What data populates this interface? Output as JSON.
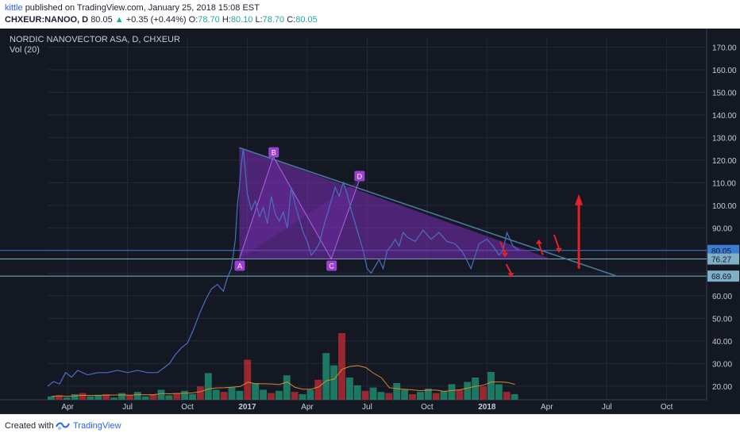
{
  "header": {
    "author": "kittle",
    "published_text": "published on TradingView.com, January 25, 2018 15:08 EST",
    "symbol": "CHXEUR:NANOO, D",
    "last": "80.05",
    "change_arrow": "▲",
    "change": "+0.35 (+0.44%)",
    "o_label": "O:",
    "o_value": "78.70",
    "h_label": "H:",
    "h_value": "80.10",
    "l_label": "L:",
    "l_value": "78.70",
    "c_label": "C:",
    "c_value": "80.05"
  },
  "chart": {
    "title": "NORDIC NANOVECTOR ASA, D, CHXEUR",
    "volume_label": "Vol (20)"
  },
  "chart_data": {
    "type": "line",
    "y_axis": {
      "range": [
        14,
        174
      ],
      "ticks": [
        "170.00",
        "160.00",
        "150.00",
        "140.00",
        "130.00",
        "120.00",
        "110.00",
        "100.00",
        "90.00",
        "80.00",
        "70.00",
        "60.00",
        "50.00",
        "40.00",
        "30.00",
        "20.00"
      ],
      "tick_values": [
        170,
        160,
        150,
        140,
        130,
        120,
        110,
        100,
        90,
        80,
        70,
        60,
        50,
        40,
        30,
        20
      ]
    },
    "x_axis": {
      "ticks": [
        "Apr",
        "Jul",
        "Oct",
        "2017",
        "Apr",
        "Jul",
        "Oct",
        "2018",
        "Apr",
        "Jul",
        "Oct"
      ],
      "tick_months": [
        3,
        6,
        9,
        12,
        15,
        18,
        21,
        24,
        27,
        30,
        33
      ],
      "bold": [
        false,
        false,
        false,
        true,
        false,
        false,
        false,
        true,
        false,
        false,
        false
      ],
      "range_months": [
        2.0,
        35.0
      ]
    },
    "series": [
      {
        "points": [
          [
            2.0,
            20
          ],
          [
            2.3,
            22
          ],
          [
            2.6,
            21
          ],
          [
            2.9,
            26
          ],
          [
            3.2,
            24
          ],
          [
            3.5,
            27
          ],
          [
            4.0,
            25
          ],
          [
            4.5,
            26
          ],
          [
            5.0,
            26
          ],
          [
            5.5,
            27
          ],
          [
            6.0,
            26
          ],
          [
            6.5,
            27
          ],
          [
            7.0,
            26
          ],
          [
            7.5,
            26
          ],
          [
            7.8,
            28
          ],
          [
            8.1,
            30
          ],
          [
            8.4,
            34
          ],
          [
            8.7,
            37
          ],
          [
            9.0,
            39
          ],
          [
            9.3,
            45
          ],
          [
            9.6,
            52
          ],
          [
            9.9,
            58
          ],
          [
            10.2,
            63
          ],
          [
            10.5,
            65
          ],
          [
            10.8,
            62
          ],
          [
            11.0,
            68
          ],
          [
            11.2,
            72
          ],
          [
            11.4,
            85
          ],
          [
            11.5,
            100
          ],
          [
            11.6,
            108
          ],
          [
            11.7,
            118
          ],
          [
            11.8,
            125
          ],
          [
            11.9,
            115
          ],
          [
            12.0,
            105
          ],
          [
            12.2,
            98
          ],
          [
            12.4,
            102
          ],
          [
            12.6,
            95
          ],
          [
            12.8,
            99
          ],
          [
            13.0,
            92
          ],
          [
            13.2,
            104
          ],
          [
            13.4,
            96
          ],
          [
            13.6,
            93
          ],
          [
            13.8,
            97
          ],
          [
            14.0,
            90
          ],
          [
            14.2,
            108
          ],
          [
            14.4,
            100
          ],
          [
            14.6,
            94
          ],
          [
            14.8,
            88
          ],
          [
            15.0,
            84
          ],
          [
            15.2,
            78
          ],
          [
            15.4,
            80
          ],
          [
            15.6,
            83
          ],
          [
            15.8,
            90
          ],
          [
            16.0,
            96
          ],
          [
            16.2,
            102
          ],
          [
            16.4,
            108
          ],
          [
            16.6,
            104
          ],
          [
            16.8,
            110
          ],
          [
            17.0,
            105
          ],
          [
            17.2,
            98
          ],
          [
            17.4,
            92
          ],
          [
            17.6,
            86
          ],
          [
            17.8,
            80
          ],
          [
            18.0,
            72
          ],
          [
            18.2,
            70
          ],
          [
            18.4,
            73
          ],
          [
            18.6,
            76
          ],
          [
            18.8,
            72
          ],
          [
            19.0,
            80
          ],
          [
            19.2,
            82
          ],
          [
            19.4,
            85
          ],
          [
            19.6,
            82
          ],
          [
            19.8,
            88
          ],
          [
            20.0,
            86
          ],
          [
            20.4,
            84
          ],
          [
            20.8,
            89
          ],
          [
            21.2,
            85
          ],
          [
            21.6,
            88
          ],
          [
            22.0,
            84
          ],
          [
            22.4,
            83
          ],
          [
            22.8,
            79
          ],
          [
            23.2,
            72
          ],
          [
            23.6,
            83
          ],
          [
            24.0,
            85
          ],
          [
            24.3,
            82
          ],
          [
            24.6,
            78
          ],
          [
            24.8,
            80
          ],
          [
            25.0,
            88
          ],
          [
            25.3,
            82
          ],
          [
            25.6,
            80.05
          ]
        ]
      },
      {
        "name": "Vol (20)",
        "type": "bar",
        "values": [
          0.3,
          0.4,
          0.2,
          0.5,
          0.6,
          0.3,
          0.4,
          0.5,
          0.2,
          0.6,
          0.4,
          0.7,
          0.3,
          0.5,
          0.9,
          0.4,
          0.6,
          0.8,
          0.5,
          1.2,
          2.4,
          0.9,
          0.7,
          1.1,
          0.8,
          3.6,
          1.5,
          0.9,
          0.6,
          0.8,
          2.2,
          0.7,
          0.5,
          0.9,
          1.8,
          4.2,
          3.1,
          6.0,
          2.0,
          1.3,
          0.8,
          1.1,
          0.7,
          0.6,
          1.5,
          0.9,
          0.5,
          0.7,
          1.0,
          0.6,
          0.8,
          1.4,
          0.9,
          1.6,
          2.0,
          1.2,
          2.5,
          1.4,
          0.7,
          0.5
        ],
        "x_range": [
          2.0,
          25.6
        ]
      }
    ],
    "price_labels": [
      {
        "value": 80.05,
        "text": "80.05",
        "color": "#3a7bd5"
      },
      {
        "value": 76.27,
        "text": "76.27",
        "color": "#7fb0c8"
      },
      {
        "value": 68.69,
        "text": "68.69",
        "color": "#7fb0c8"
      }
    ],
    "horizontal_lines": [
      80.05,
      76.27,
      68.69
    ],
    "pattern": {
      "points": [
        {
          "label": "A",
          "x": 11.6,
          "y": 76.27
        },
        {
          "label": "B",
          "x": 13.3,
          "y": 121.5
        },
        {
          "label": "C",
          "x": 16.2,
          "y": 76.27
        },
        {
          "label": "D",
          "x": 17.6,
          "y": 111.0
        }
      ],
      "triangle": [
        [
          11.6,
          125.5
        ],
        [
          27.2,
          76.27
        ],
        [
          11.6,
          76.27
        ]
      ],
      "trendline": [
        [
          11.6,
          125.5
        ],
        [
          30.5,
          68.69
        ]
      ]
    },
    "annotations": [
      {
        "kind": "arrow-down",
        "x": 24.9,
        "y0": 84,
        "y1": 77
      },
      {
        "kind": "arrow-down",
        "x": 25.2,
        "y0": 74,
        "y1": 68
      },
      {
        "kind": "arrow-up",
        "x": 26.6,
        "y0": 78,
        "y1": 85
      },
      {
        "kind": "arrow-down",
        "x": 27.6,
        "y0": 87,
        "y1": 79
      },
      {
        "kind": "arrow-up-big",
        "x": 28.6,
        "y0": 72,
        "y1": 105
      }
    ]
  },
  "colors": {
    "background": "#141823",
    "grid": "#232838",
    "price_line": "#4a6fc2",
    "pattern_fill": "#7b2fb8",
    "pattern_label": "#9b3fd6",
    "annotation_red": "#e52222",
    "vol_up": "#1e8a6c",
    "vol_down": "#b02a34",
    "vol_ma": "#d88a2a"
  },
  "footer": {
    "created_with": "Created with",
    "brand": "TradingView"
  }
}
